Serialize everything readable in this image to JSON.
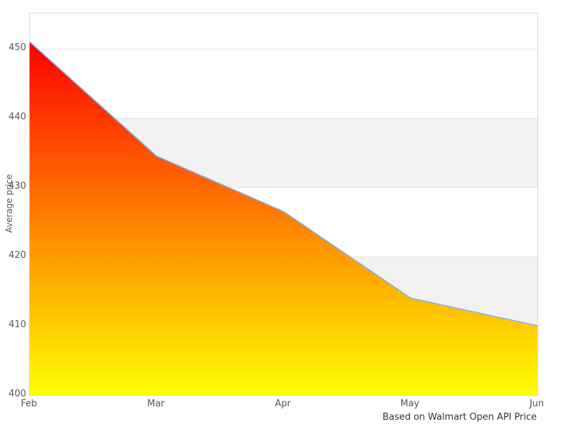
{
  "chart_data": {
    "type": "area",
    "categories": [
      "Feb",
      "Mar",
      "Apr",
      "May",
      "Jun"
    ],
    "values": [
      451,
      434.5,
      426.5,
      414,
      410
    ],
    "title": "",
    "xlabel": "",
    "ylabel": "Average price",
    "caption": "Based on Walmart Open API Price",
    "ylim": [
      400,
      455.1
    ],
    "yticks": [
      400,
      410,
      420,
      430,
      440,
      450
    ],
    "shaded_bands": [
      [
        430,
        440
      ],
      [
        410,
        420
      ]
    ],
    "grid": true,
    "legend_position": "none"
  },
  "style": {
    "line_color": "#7cb5ec",
    "fill_top_color": "#ff0000",
    "fill_bottom_color": "#ffff00",
    "band_color": "#f2f2f2",
    "grid_color": "#e6e6e6",
    "frame_color": "#d8d8d8",
    "tick_label_color": "#555555",
    "caption_color": "#333333",
    "background_color": "#ffffff"
  }
}
